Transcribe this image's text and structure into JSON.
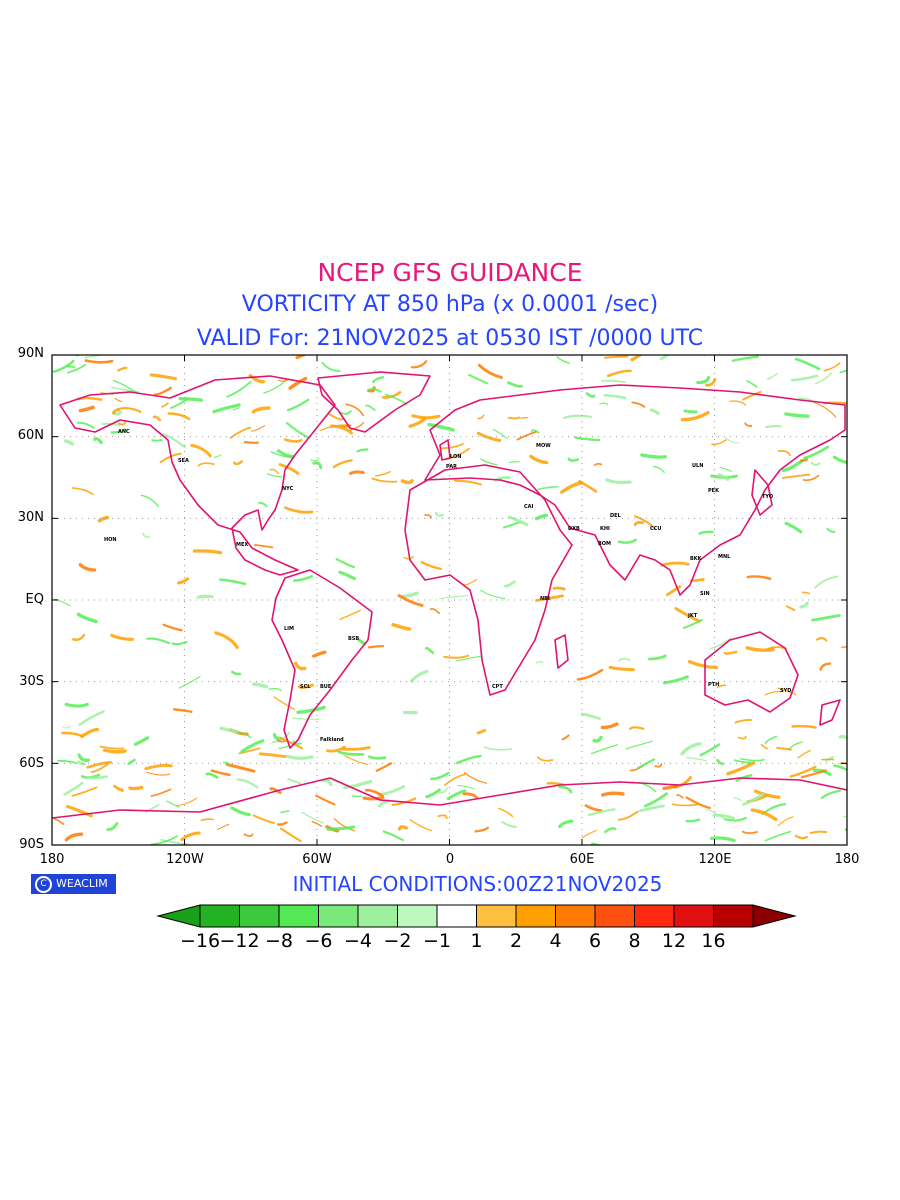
{
  "titles": {
    "line1": "NCEP GFS GUIDANCE",
    "line2": "VORTICITY AT 850 hPa (x 0.0001 /sec)",
    "line3": "VALID For: 21NOV2025 at 0530 IST /0000 UTC"
  },
  "colors": {
    "title1": "#e8177a",
    "title2": "#2544ff",
    "coast": "#e0146e",
    "negative": "#55ee55",
    "positive": "#ffa000",
    "grid": "#999999"
  },
  "axes": {
    "y_labels": [
      "90N",
      "60N",
      "30N",
      "EQ",
      "30S",
      "60S",
      "90S"
    ],
    "x_labels": [
      "180",
      "120W",
      "60W",
      "0",
      "60E",
      "120E",
      "180"
    ]
  },
  "branding": {
    "symbol": "C",
    "text": "WEACLIM"
  },
  "footer": {
    "initial_conditions": "INITIAL  CONDITIONS:00Z21NOV2025"
  },
  "colorbar": {
    "colors": [
      "#18a018",
      "#22b222",
      "#3dc93d",
      "#55e855",
      "#7ae87a",
      "#9ef09e",
      "#bef8be",
      "#ffffff",
      "#ffc040",
      "#ffa000",
      "#ff7a00",
      "#ff5010",
      "#ff2a10",
      "#e01010",
      "#b80000",
      "#8a0000"
    ],
    "labels": [
      "−16",
      "−12",
      "−8",
      "−6",
      "−4",
      "−2",
      "−1",
      "1",
      "2",
      "4",
      "6",
      "8",
      "12",
      "16"
    ]
  },
  "stations": [
    "ANC",
    "SEA",
    "NYC",
    "HON",
    "MEX",
    "LIM",
    "BUE",
    "LON",
    "PAR",
    "MOW",
    "CAI",
    "DEL",
    "BOM",
    "CCU",
    "BKK",
    "SIN",
    "PEK",
    "TYO",
    "SYD",
    "PTH",
    "CPT",
    "NBI",
    "Falkland",
    "DXB",
    "KHI",
    "ULN",
    "MNL",
    "JKT",
    "SCL",
    "BSB"
  ]
}
